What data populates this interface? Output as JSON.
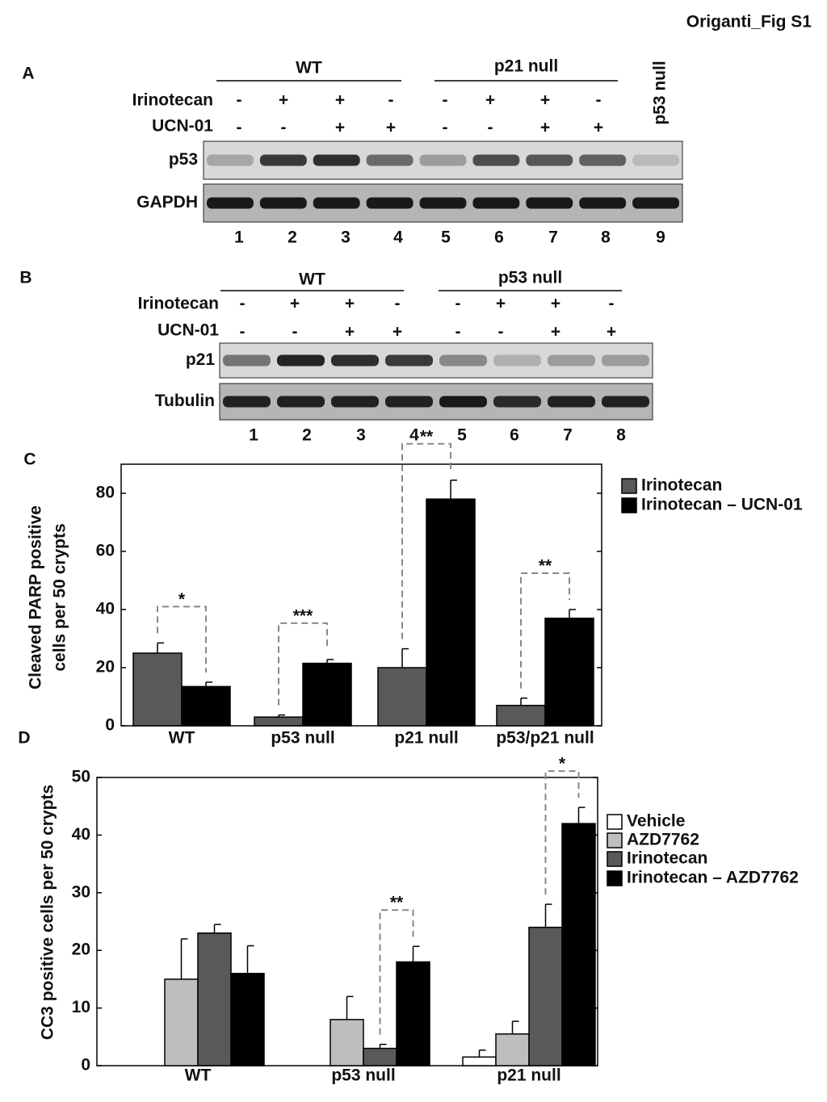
{
  "figure_title": "Origanti_Fig S1",
  "blots": [
    {
      "panel": "A",
      "groups": [
        "WT",
        "p21 null"
      ],
      "lane9_label": "p53 null",
      "treatments": [
        {
          "name": "Irinotecan",
          "signs": [
            "-",
            "+",
            "+",
            "-",
            "-",
            "+",
            "+",
            "-"
          ]
        },
        {
          "name": "UCN-01",
          "signs": [
            "-",
            "-",
            "+",
            "+",
            "-",
            "-",
            "+",
            "+"
          ]
        }
      ],
      "bands": [
        "p53",
        "GAPDH"
      ],
      "lanes": [
        1,
        2,
        3,
        4,
        5,
        6,
        7,
        8,
        9
      ]
    },
    {
      "panel": "B",
      "groups": [
        "WT",
        "p53 null"
      ],
      "treatments": [
        {
          "name": "Irinotecan",
          "signs": [
            "-",
            "+",
            "+",
            "-",
            "-",
            "+",
            "+",
            "-"
          ]
        },
        {
          "name": "UCN-01",
          "signs": [
            "-",
            "-",
            "+",
            "+",
            "-",
            "-",
            "+",
            "+"
          ]
        }
      ],
      "bands": [
        "p21",
        "Tubulin"
      ],
      "lanes": [
        1,
        2,
        3,
        4,
        5,
        6,
        7,
        8
      ]
    }
  ],
  "chart_data": [
    {
      "type": "bar",
      "panel": "C",
      "ylabel": [
        "Cleaved PARP positive",
        "cells per 50 crypts"
      ],
      "categories": [
        "WT",
        "p53 null",
        "p21 null",
        "p53/p21 null"
      ],
      "series": [
        {
          "name": "Irinotecan",
          "color": "#58595b",
          "values": [
            25,
            3,
            20,
            7
          ],
          "errors": [
            3.5,
            0.7,
            6.5,
            2.5
          ]
        },
        {
          "name": "Irinotecan – UCN-01",
          "color": "#000000",
          "values": [
            13.5,
            21.5,
            78,
            37
          ],
          "errors": [
            1.5,
            1.3,
            6.5,
            3
          ]
        }
      ],
      "significance": [
        "*",
        "***",
        "**",
        "**"
      ],
      "significance_series": [
        0,
        1
      ],
      "ylim": [
        0,
        90
      ],
      "yticks": [
        0,
        20,
        40,
        60,
        80
      ]
    },
    {
      "type": "bar",
      "panel": "D",
      "ylabel": [
        "CC3 positive cells per 50 crypts"
      ],
      "categories": [
        "WT",
        "p53 null",
        "p21 null"
      ],
      "series": [
        {
          "name": "Vehicle",
          "color": "#ffffff",
          "values": [
            null,
            null,
            1.5
          ],
          "errors": [
            null,
            null,
            1.2
          ]
        },
        {
          "name": "AZD7762",
          "color": "#bcbec0",
          "values": [
            15,
            8,
            5.5
          ],
          "errors": [
            7,
            4,
            2.2
          ]
        },
        {
          "name": "Irinotecan",
          "color": "#58595b",
          "values": [
            23,
            3,
            24
          ],
          "errors": [
            1.5,
            0.7,
            4
          ]
        },
        {
          "name": "Irinotecan – AZD7762",
          "color": "#000000",
          "values": [
            16,
            18,
            42
          ],
          "errors": [
            4.8,
            2.7,
            2.8
          ]
        }
      ],
      "significance": [
        null,
        "**",
        "*"
      ],
      "significance_series": [
        2,
        3
      ],
      "ylim": [
        0,
        50
      ],
      "yticks": [
        0,
        10,
        20,
        30,
        40,
        50
      ]
    }
  ]
}
